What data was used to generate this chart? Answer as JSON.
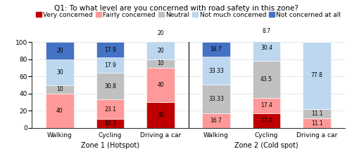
{
  "title": "Q1: To what level are you concerned with road safety in this zone?",
  "categories": [
    "Walking",
    "Cycling",
    "Driving a car",
    "Walking",
    "Cycling",
    "Driving a car"
  ],
  "zone1_label": "Zone 1 (Hotspot)",
  "zone2_label": "Zone 2 (Cold spot)",
  "segments": [
    "Very concerned",
    "Fairly concerned",
    "Neutral",
    "Not much concerned",
    "Not concerned at all"
  ],
  "colors": [
    "#c00000",
    "#ff9999",
    "#c0c0c0",
    "#bdd7ee",
    "#4472c4"
  ],
  "values": {
    "Very concerned": [
      0,
      10.3,
      30,
      0,
      17.4,
      0
    ],
    "Fairly concerned": [
      40,
      23.1,
      40,
      16.7,
      17.4,
      11.1
    ],
    "Neutral": [
      10,
      30.8,
      10,
      33.33,
      43.5,
      11.1
    ],
    "Not much concerned": [
      30,
      17.9,
      20,
      33.33,
      30.4,
      77.8
    ],
    "Not concerned at all": [
      20,
      17.9,
      20,
      16.7,
      8.7,
      0
    ]
  },
  "labels": {
    "Very concerned": [
      "",
      "10.3",
      "30",
      "",
      "17.4",
      ""
    ],
    "Fairly concerned": [
      "40",
      "23.1",
      "40",
      "16.7",
      "17.4",
      "11.1"
    ],
    "Neutral": [
      "10",
      "30.8",
      "10",
      "33.33",
      "43.5",
      "11.1"
    ],
    "Not much concerned": [
      "30",
      "17.9",
      "20",
      "33.33",
      "30.4",
      "77.8"
    ],
    "Not concerned at all": [
      "20",
      "17.9",
      "20",
      "16.7",
      "8.7",
      ""
    ]
  },
  "ylim": [
    0,
    100
  ],
  "yticks": [
    0,
    20,
    40,
    60,
    80,
    100
  ],
  "bar_width": 0.55,
  "title_fontsize": 7.5,
  "legend_fontsize": 6.5,
  "tick_fontsize": 6.5,
  "label_fontsize": 5.5,
  "zone_label_fontsize": 7.0,
  "background_color": "#ffffff"
}
